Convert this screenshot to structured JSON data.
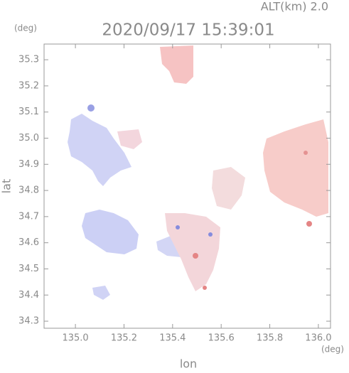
{
  "chart_data": {
    "type": "map",
    "title": "2020/09/17 15:39:01",
    "subtitle": "ALT(km) 2.0",
    "y_unit": "(deg)",
    "x_unit": "(deg)",
    "x_label": "lon",
    "y_label": "lat",
    "xlim": [
      134.871,
      136.05
    ],
    "ylim": [
      34.273,
      35.36
    ],
    "xticks": [
      {
        "value": 135,
        "label": "135.0"
      },
      135.2,
      135.4,
      135.6,
      135.8,
      {
        "value": 136,
        "label": "136.0"
      }
    ],
    "yticks": [
      34.3,
      34.4,
      34.5,
      34.6,
      34.7,
      34.8,
      34.9,
      {
        "value": 35,
        "label": "35.0"
      },
      35.1,
      35.2,
      35.3
    ]
  }
}
